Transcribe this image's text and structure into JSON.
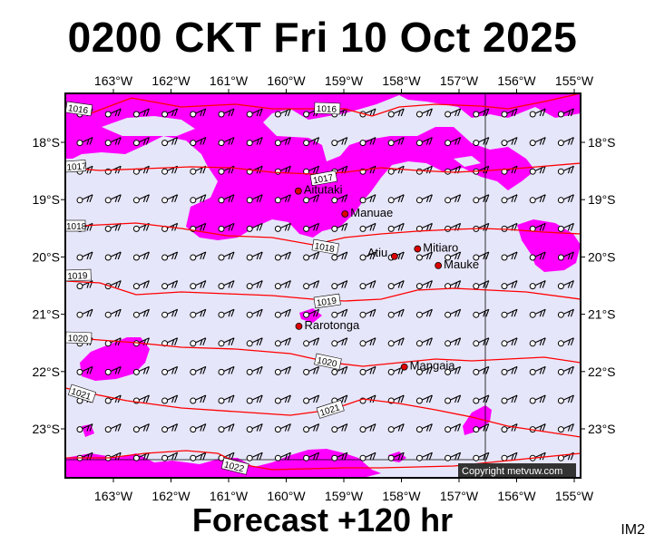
{
  "header": {
    "title": "0200 CKT Fri 10 Oct 2025"
  },
  "footer": {
    "forecast": "Forecast +120 hr",
    "image_id": "IM2"
  },
  "map": {
    "lon_labels": [
      "163°W",
      "162°W",
      "161°W",
      "160°W",
      "159°W",
      "158°W",
      "157°W",
      "156°W",
      "155°W"
    ],
    "lat_labels": [
      "18°S",
      "19°S",
      "20°S",
      "21°S",
      "22°S",
      "23°S"
    ],
    "places": [
      {
        "name": "Aitutaki",
        "lon": -159.79,
        "lat": -18.85
      },
      {
        "name": "Manuae",
        "lon": -158.98,
        "lat": -19.25
      },
      {
        "name": "Mitiaro",
        "lon": -157.72,
        "lat": -19.86
      },
      {
        "name": "Atiu",
        "lon": -158.12,
        "lat": -19.99
      },
      {
        "name": "Mauke",
        "lon": -157.36,
        "lat": -20.15
      },
      {
        "name": "Rarotonga",
        "lon": -159.78,
        "lat": -21.21
      },
      {
        "name": "Mangaia",
        "lon": -157.95,
        "lat": -21.92
      }
    ],
    "isobar_labels": [
      "1016",
      "1016",
      "1017",
      "1017",
      "1018",
      "1018",
      "1019",
      "1019",
      "1020",
      "1020",
      "1021",
      "1021",
      "1022"
    ],
    "copyright": "Copyright metvuw.com",
    "colors": {
      "ocean": "#e6e6fa",
      "rain": "#ff00ff",
      "isobar": "#ff0000",
      "place": "#dd0000"
    }
  }
}
